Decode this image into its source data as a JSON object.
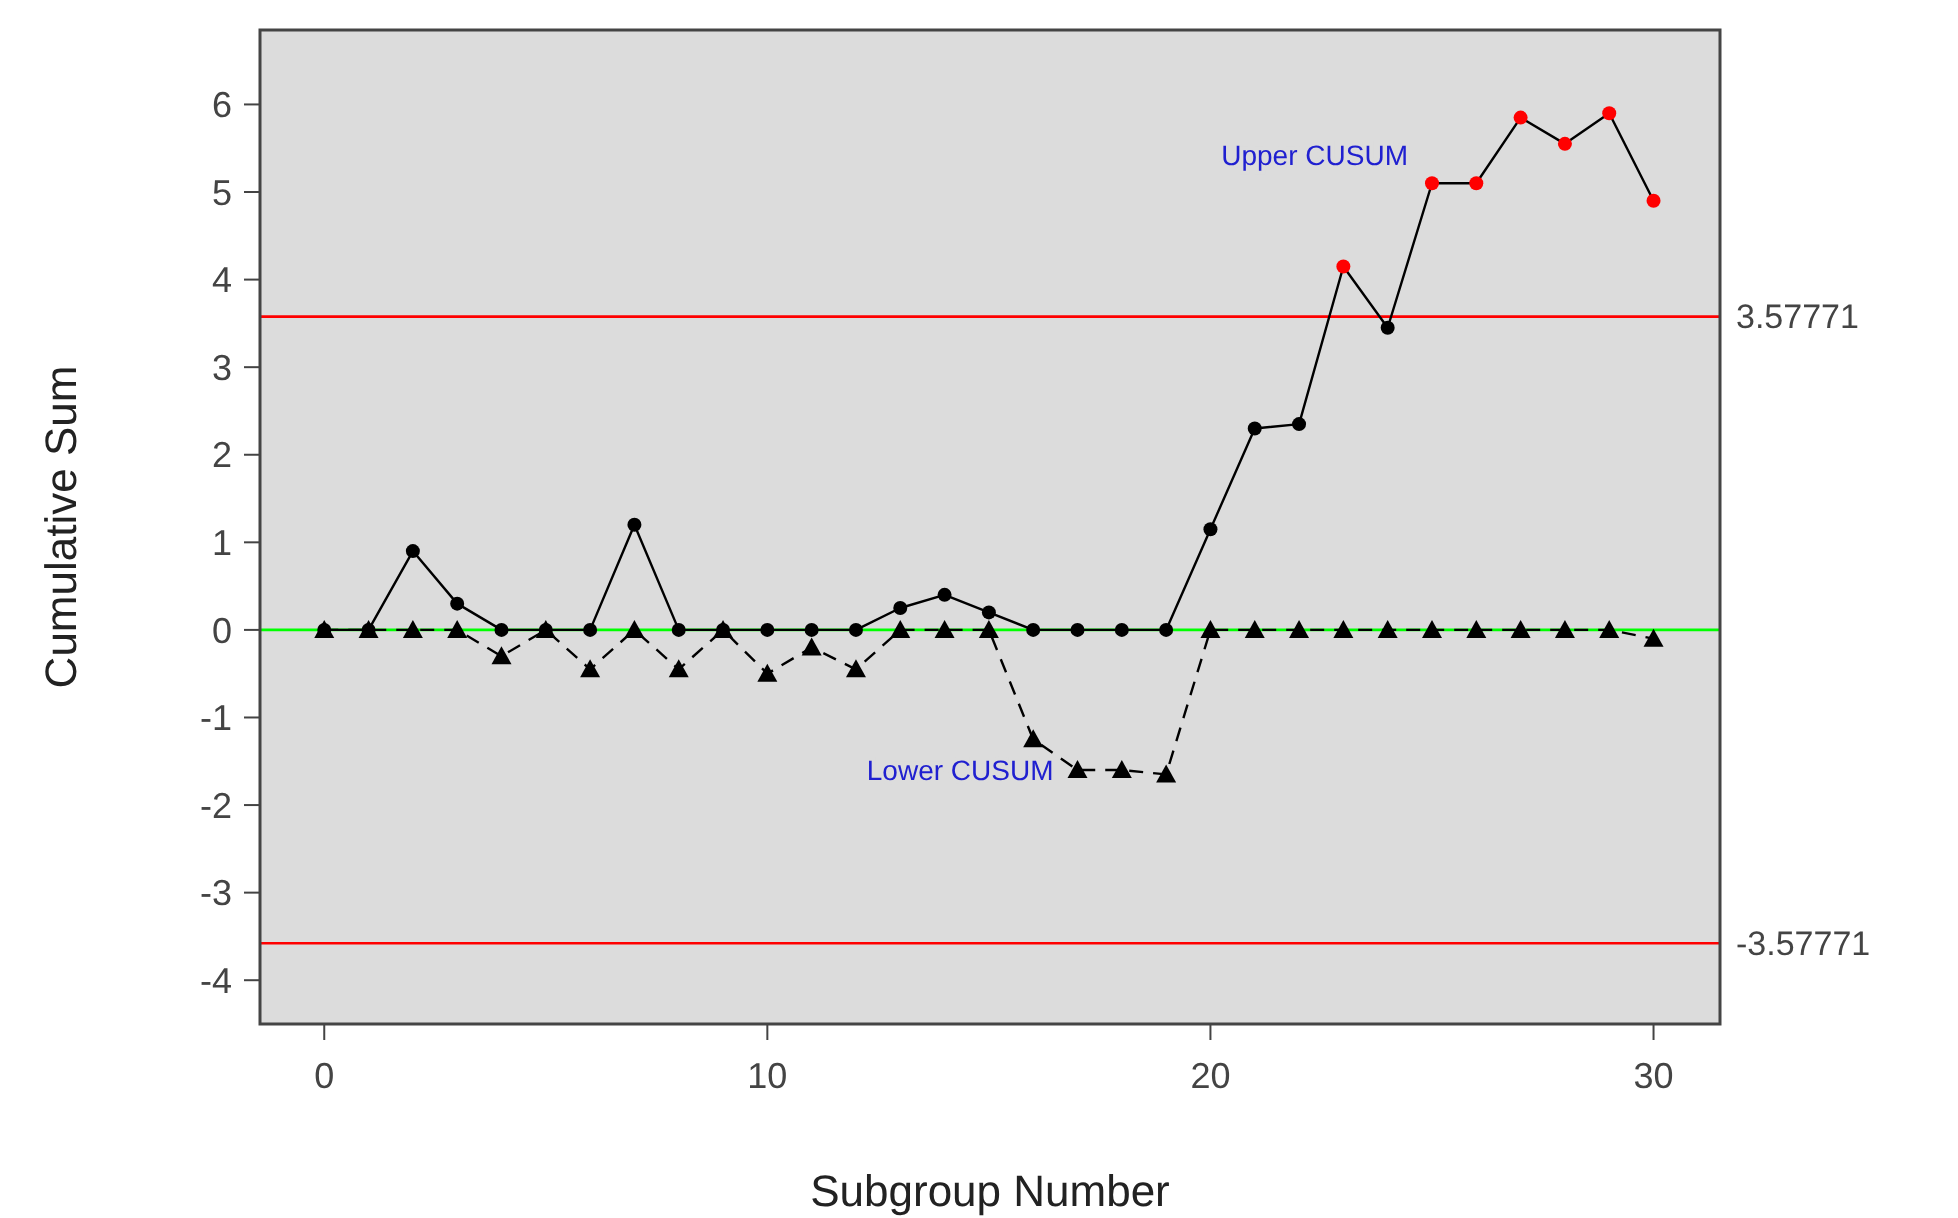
{
  "chart_data": {
    "type": "line",
    "xlabel": "Subgroup Number",
    "ylabel": "Cumulative Sum",
    "x": [
      0,
      1,
      2,
      3,
      4,
      5,
      6,
      7,
      8,
      9,
      10,
      11,
      12,
      13,
      14,
      15,
      16,
      17,
      18,
      19,
      20,
      21,
      22,
      23,
      24,
      25,
      26,
      27,
      28,
      29,
      30
    ],
    "series": [
      {
        "name": "Upper CUSUM",
        "color": "#000000",
        "marker": "circle",
        "line_style": "solid",
        "values": [
          0,
          0,
          0.9,
          0.3,
          0,
          0,
          0,
          1.2,
          0,
          0,
          0,
          0,
          0,
          0.25,
          0.4,
          0.2,
          0,
          0,
          0,
          0,
          1.15,
          2.3,
          2.35,
          4.15,
          3.45,
          5.1,
          5.1,
          5.85,
          5.55,
          5.9,
          4.9
        ],
        "colors": [
          "#000000",
          "#000000",
          "#000000",
          "#000000",
          "#000000",
          "#000000",
          "#000000",
          "#000000",
          "#000000",
          "#000000",
          "#000000",
          "#000000",
          "#000000",
          "#000000",
          "#000000",
          "#000000",
          "#000000",
          "#000000",
          "#000000",
          "#000000",
          "#000000",
          "#000000",
          "#000000",
          "#ff0000",
          "#000000",
          "#ff0000",
          "#ff0000",
          "#ff0000",
          "#ff0000",
          "#ff0000",
          "#ff0000"
        ]
      },
      {
        "name": "Lower CUSUM",
        "color": "#000000",
        "marker": "triangle",
        "line_style": "dashed",
        "values": [
          0,
          0,
          0,
          0,
          -0.3,
          0,
          -0.45,
          0,
          -0.45,
          0,
          -0.5,
          -0.2,
          -0.45,
          0,
          0,
          0,
          -1.25,
          -1.6,
          -1.6,
          -1.65,
          0,
          0,
          0,
          0,
          0,
          0,
          0,
          0,
          0,
          0,
          -0.1
        ]
      }
    ],
    "xlim": [
      -1.45,
      31.5
    ],
    "xticks": [
      0,
      10,
      20,
      30
    ],
    "ylim": [
      -4.5,
      6.85
    ],
    "yticks": [
      -4,
      -3,
      -2,
      -1,
      0,
      1,
      2,
      3,
      4,
      5,
      6
    ],
    "grid": false,
    "legend": false,
    "ref_lines": [
      {
        "axis": "y",
        "value": 3.57771,
        "label": "3.57771",
        "color": "#ff0000"
      },
      {
        "axis": "y",
        "value": -3.57771,
        "label": "-3.57771",
        "color": "#ff0000"
      },
      {
        "axis": "y",
        "value": 0,
        "label": null,
        "color": "#00ff00"
      }
    ]
  }
}
